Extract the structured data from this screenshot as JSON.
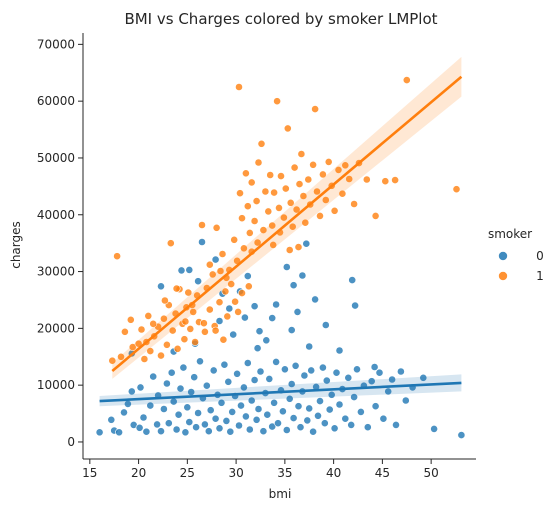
{
  "chart_data": {
    "type": "scatter",
    "title": "BMI vs Charges colored by smoker LMPlot",
    "xlabel": "bmi",
    "ylabel": "charges",
    "xlim": [
      14.3,
      54.6
    ],
    "ylim": [
      -3000,
      72000
    ],
    "x_ticks": [
      15,
      20,
      25,
      30,
      35,
      40,
      45,
      50
    ],
    "y_ticks": [
      0,
      10000,
      20000,
      30000,
      40000,
      50000,
      60000,
      70000
    ],
    "grid": false,
    "legend": {
      "title": "smoker",
      "position": "right",
      "entries": [
        "0",
        "1"
      ]
    },
    "colors": {
      "0": "#1f77b4",
      "1": "#ff7f0e"
    },
    "series": [
      {
        "name": "0",
        "color": "#1f77b4",
        "regression": {
          "x": [
            16.0,
            53.1
          ],
          "y": [
            7200,
            10400
          ],
          "ci_halfwidth": [
            900,
            1500
          ]
        },
        "points": [
          [
            16.0,
            1700
          ],
          [
            17.2,
            3900
          ],
          [
            17.5,
            2000
          ],
          [
            18.0,
            1700
          ],
          [
            18.5,
            5200
          ],
          [
            18.9,
            6700
          ],
          [
            19.3,
            8900
          ],
          [
            19.5,
            3000
          ],
          [
            20.1,
            2500
          ],
          [
            20.2,
            9600
          ],
          [
            20.5,
            4300
          ],
          [
            20.8,
            1800
          ],
          [
            21.2,
            6400
          ],
          [
            21.5,
            11500
          ],
          [
            21.9,
            3100
          ],
          [
            22.0,
            8200
          ],
          [
            22.3,
            1900
          ],
          [
            22.6,
            5800
          ],
          [
            22.9,
            10300
          ],
          [
            23.1,
            3300
          ],
          [
            23.4,
            12200
          ],
          [
            23.6,
            7100
          ],
          [
            23.9,
            2200
          ],
          [
            24.1,
            4800
          ],
          [
            24.3,
            9400
          ],
          [
            24.6,
            13100
          ],
          [
            24.8,
            1700
          ],
          [
            25.0,
            6100
          ],
          [
            25.2,
            3500
          ],
          [
            25.4,
            8800
          ],
          [
            25.7,
            11400
          ],
          [
            25.9,
            2600
          ],
          [
            26.1,
            5100
          ],
          [
            26.3,
            14200
          ],
          [
            26.6,
            7700
          ],
          [
            26.8,
            3100
          ],
          [
            27.0,
            9900
          ],
          [
            27.2,
            1900
          ],
          [
            27.4,
            5600
          ],
          [
            27.7,
            12600
          ],
          [
            27.9,
            4100
          ],
          [
            28.1,
            8300
          ],
          [
            28.3,
            2400
          ],
          [
            28.5,
            6900
          ],
          [
            28.8,
            13600
          ],
          [
            29.0,
            3700
          ],
          [
            29.2,
            10600
          ],
          [
            29.4,
            1800
          ],
          [
            29.6,
            5300
          ],
          [
            29.9,
            8100
          ],
          [
            30.1,
            12000
          ],
          [
            30.3,
            2900
          ],
          [
            30.5,
            6400
          ],
          [
            30.8,
            9600
          ],
          [
            31.0,
            4500
          ],
          [
            31.2,
            13900
          ],
          [
            31.4,
            2200
          ],
          [
            31.6,
            7300
          ],
          [
            31.9,
            10900
          ],
          [
            32.1,
            3900
          ],
          [
            32.3,
            5800
          ],
          [
            32.5,
            12400
          ],
          [
            32.8,
            1900
          ],
          [
            33.0,
            8600
          ],
          [
            33.2,
            4800
          ],
          [
            33.4,
            11100
          ],
          [
            33.7,
            2700
          ],
          [
            33.9,
            6900
          ],
          [
            34.1,
            14100
          ],
          [
            34.3,
            3300
          ],
          [
            34.6,
            9100
          ],
          [
            34.8,
            5400
          ],
          [
            35.0,
            12800
          ],
          [
            35.2,
            2100
          ],
          [
            35.5,
            7600
          ],
          [
            35.7,
            10200
          ],
          [
            35.9,
            4200
          ],
          [
            36.1,
            13400
          ],
          [
            36.4,
            6300
          ],
          [
            36.6,
            2600
          ],
          [
            36.8,
            8900
          ],
          [
            37.0,
            11700
          ],
          [
            37.3,
            3800
          ],
          [
            37.5,
            5900
          ],
          [
            37.7,
            12600
          ],
          [
            37.9,
            1800
          ],
          [
            38.2,
            9700
          ],
          [
            38.4,
            4600
          ],
          [
            38.6,
            7200
          ],
          [
            38.9,
            13100
          ],
          [
            39.1,
            3300
          ],
          [
            39.3,
            10800
          ],
          [
            39.6,
            5700
          ],
          [
            39.8,
            8300
          ],
          [
            40.1,
            2400
          ],
          [
            40.3,
            12200
          ],
          [
            40.6,
            6600
          ],
          [
            40.9,
            9300
          ],
          [
            41.2,
            4100
          ],
          [
            41.5,
            11300
          ],
          [
            41.8,
            3000
          ],
          [
            42.1,
            7900
          ],
          [
            42.4,
            12800
          ],
          [
            42.8,
            5300
          ],
          [
            43.1,
            9900
          ],
          [
            43.5,
            2600
          ],
          [
            43.9,
            10700
          ],
          [
            44.3,
            6300
          ],
          [
            44.7,
            12200
          ],
          [
            45.1,
            4100
          ],
          [
            45.6,
            8900
          ],
          [
            46.0,
            11000
          ],
          [
            46.4,
            3000
          ],
          [
            46.9,
            12400
          ],
          [
            47.4,
            7300
          ],
          [
            48.1,
            9600
          ],
          [
            49.2,
            11300
          ],
          [
            50.3,
            2300
          ],
          [
            53.1,
            1200
          ],
          [
            26.5,
            35200
          ],
          [
            27.9,
            32100
          ],
          [
            28.6,
            26100
          ],
          [
            29.3,
            23500
          ],
          [
            30.4,
            26500
          ],
          [
            31.2,
            29200
          ],
          [
            31.9,
            23900
          ],
          [
            32.4,
            19500
          ],
          [
            33.1,
            17900
          ],
          [
            34.1,
            24200
          ],
          [
            35.2,
            30800
          ],
          [
            35.9,
            27600
          ],
          [
            36.3,
            22900
          ],
          [
            36.8,
            29300
          ],
          [
            37.2,
            34900
          ],
          [
            38.1,
            25100
          ],
          [
            39.2,
            20600
          ],
          [
            41.9,
            28500
          ],
          [
            42.2,
            24000
          ],
          [
            24.4,
            30200
          ],
          [
            25.2,
            30300
          ],
          [
            22.3,
            27400
          ],
          [
            26.1,
            28300
          ],
          [
            28.3,
            21300
          ],
          [
            30.9,
            21900
          ],
          [
            33.7,
            21800
          ],
          [
            37.5,
            16800
          ],
          [
            40.6,
            16100
          ],
          [
            44.2,
            13200
          ],
          [
            23.6,
            15900
          ],
          [
            25.8,
            17300
          ],
          [
            29.7,
            18900
          ],
          [
            32.2,
            16500
          ],
          [
            35.7,
            19700
          ],
          [
            19.3,
            15600
          ]
        ]
      },
      {
        "name": "1",
        "color": "#ff7f0e",
        "regression": {
          "x": [
            17.3,
            53.1
          ],
          "y": [
            12500,
            64300
          ],
          "ci_halfwidth": [
            1400,
            3500
          ]
        },
        "points": [
          [
            17.3,
            14300
          ],
          [
            17.8,
            32700
          ],
          [
            18.2,
            15000
          ],
          [
            18.6,
            19400
          ],
          [
            19.2,
            21500
          ],
          [
            19.4,
            16700
          ],
          [
            20.0,
            17300
          ],
          [
            20.3,
            19800
          ],
          [
            20.6,
            14600
          ],
          [
            21.0,
            22200
          ],
          [
            21.2,
            16000
          ],
          [
            21.6,
            18600
          ],
          [
            22.0,
            20300
          ],
          [
            22.3,
            15200
          ],
          [
            22.6,
            21700
          ],
          [
            22.9,
            17100
          ],
          [
            23.1,
            24100
          ],
          [
            23.3,
            35000
          ],
          [
            23.5,
            19600
          ],
          [
            23.8,
            22600
          ],
          [
            24.0,
            16400
          ],
          [
            24.2,
            26900
          ],
          [
            24.5,
            20800
          ],
          [
            24.7,
            18100
          ],
          [
            24.9,
            23700
          ],
          [
            25.1,
            26300
          ],
          [
            25.3,
            19900
          ],
          [
            25.6,
            22900
          ],
          [
            25.8,
            17600
          ],
          [
            26.0,
            25800
          ],
          [
            26.2,
            21100
          ],
          [
            26.5,
            38200
          ],
          [
            26.8,
            19400
          ],
          [
            27.0,
            27100
          ],
          [
            27.3,
            23300
          ],
          [
            27.6,
            29500
          ],
          [
            27.8,
            20400
          ],
          [
            28.0,
            37700
          ],
          [
            28.3,
            24600
          ],
          [
            28.6,
            33100
          ],
          [
            28.9,
            26500
          ],
          [
            29.1,
            22100
          ],
          [
            29.3,
            30300
          ],
          [
            29.5,
            27800
          ],
          [
            29.8,
            35600
          ],
          [
            30.1,
            31900
          ],
          [
            30.3,
            62500
          ],
          [
            30.4,
            43800
          ],
          [
            30.6,
            39400
          ],
          [
            30.8,
            34100
          ],
          [
            31.0,
            47300
          ],
          [
            31.2,
            41500
          ],
          [
            31.4,
            36800
          ],
          [
            31.6,
            45700
          ],
          [
            31.9,
            38900
          ],
          [
            32.1,
            42400
          ],
          [
            32.3,
            49200
          ],
          [
            32.6,
            52500
          ],
          [
            32.8,
            37300
          ],
          [
            33.0,
            44100
          ],
          [
            33.3,
            40600
          ],
          [
            33.5,
            47000
          ],
          [
            33.7,
            38100
          ],
          [
            33.9,
            43900
          ],
          [
            34.2,
            60000
          ],
          [
            34.4,
            41200
          ],
          [
            34.6,
            46800
          ],
          [
            34.9,
            39500
          ],
          [
            35.1,
            44600
          ],
          [
            35.3,
            55200
          ],
          [
            35.6,
            42100
          ],
          [
            35.8,
            37900
          ],
          [
            36.0,
            48300
          ],
          [
            36.2,
            40900
          ],
          [
            36.5,
            45400
          ],
          [
            36.7,
            50700
          ],
          [
            36.9,
            43300
          ],
          [
            37.1,
            38600
          ],
          [
            37.4,
            46200
          ],
          [
            37.6,
            41800
          ],
          [
            37.9,
            48800
          ],
          [
            38.1,
            58600
          ],
          [
            38.3,
            44100
          ],
          [
            38.6,
            39800
          ],
          [
            38.9,
            47100
          ],
          [
            39.2,
            42600
          ],
          [
            39.5,
            49300
          ],
          [
            39.8,
            45100
          ],
          [
            40.1,
            40700
          ],
          [
            40.5,
            47900
          ],
          [
            40.9,
            43700
          ],
          [
            41.2,
            48700
          ],
          [
            41.6,
            46300
          ],
          [
            42.1,
            41900
          ],
          [
            42.6,
            49100
          ],
          [
            43.4,
            46200
          ],
          [
            44.3,
            39800
          ],
          [
            45.3,
            45900
          ],
          [
            46.3,
            46100
          ],
          [
            47.5,
            63700
          ],
          [
            52.6,
            44500
          ],
          [
            31.6,
            33500
          ],
          [
            32.2,
            35100
          ],
          [
            33.8,
            34700
          ],
          [
            34.5,
            36900
          ],
          [
            35.5,
            33800
          ],
          [
            36.4,
            34300
          ],
          [
            28.4,
            30100
          ],
          [
            29.0,
            28900
          ],
          [
            29.9,
            24700
          ],
          [
            30.6,
            26200
          ],
          [
            31.3,
            27400
          ],
          [
            27.3,
            31200
          ],
          [
            25.5,
            24100
          ],
          [
            24.8,
            21200
          ],
          [
            23.9,
            27000
          ],
          [
            22.7,
            24900
          ],
          [
            26.7,
            20900
          ],
          [
            27.9,
            19600
          ],
          [
            28.7,
            18000
          ],
          [
            30.2,
            22900
          ],
          [
            21.5,
            20800
          ],
          [
            20.8,
            17600
          ]
        ]
      }
    ]
  }
}
